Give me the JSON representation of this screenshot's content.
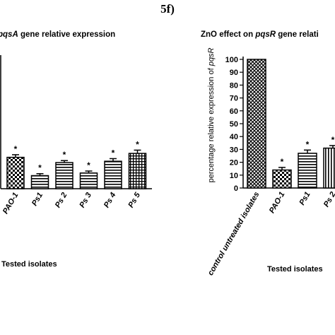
{
  "figure_label": "5f)",
  "chart_data": [
    {
      "type": "bar",
      "title_parts": [
        {
          "text": "pqsA",
          "italic": true
        },
        {
          "text": " gene relative expression",
          "italic": false
        }
      ],
      "categories": [
        "PAO-1",
        "Ps1",
        "Ps 2",
        "Ps 3",
        "Ps 4",
        "Ps 5"
      ],
      "values": [
        24,
        10,
        20,
        12,
        21,
        27
      ],
      "errors": [
        2,
        1.5,
        1.5,
        1.5,
        2,
        2.5
      ],
      "patterns": [
        "checker",
        "hlines",
        "hlines",
        "hlines",
        "hlines",
        "grid"
      ],
      "significance": [
        "*",
        "*",
        "*",
        "*",
        "*",
        "*"
      ],
      "xlabel": "Tested isolates",
      "ylim": [
        0,
        100
      ]
    },
    {
      "type": "bar",
      "title_parts": [
        {
          "text": "ZnO effect on ",
          "italic": false
        },
        {
          "text": "pqsR",
          "italic": true
        },
        {
          "text": " gene relati",
          "italic": false
        }
      ],
      "categories": [
        "control untreated isolates",
        "PAO-1",
        "Ps1",
        "Ps 2"
      ],
      "values": [
        100,
        14,
        27,
        31
      ],
      "errors": [
        0,
        2,
        2.5,
        2
      ],
      "patterns": [
        "crosshatch",
        "checker",
        "hlines",
        "vlines"
      ],
      "significance": [
        "",
        "*",
        "*",
        "*"
      ],
      "xlabel": "Tested isolates",
      "ylabel_parts": [
        {
          "text": "percentage relative expression of ",
          "italic": false
        },
        {
          "text": "pqsR",
          "italic": true
        }
      ],
      "yticks": [
        0,
        10,
        20,
        30,
        40,
        50,
        60,
        70,
        80,
        90,
        100
      ],
      "ylim": [
        0,
        100
      ]
    }
  ]
}
